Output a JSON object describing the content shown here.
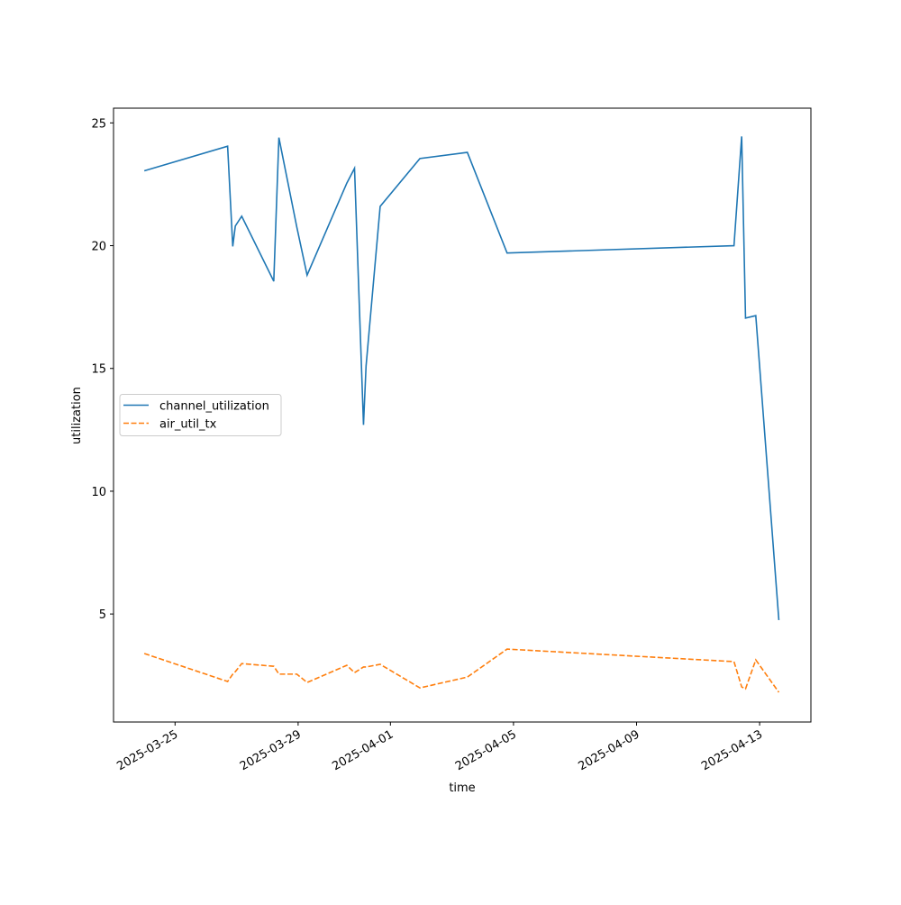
{
  "chart_data": {
    "type": "line",
    "x_label": "time",
    "y_label": "utilization",
    "x": [
      "2025-03-24 00:00",
      "2025-03-26 17:00",
      "2025-03-26 21:00",
      "2025-03-26 23:00",
      "2025-03-27 04:00",
      "2025-03-28 05:00",
      "2025-03-28 09:00",
      "2025-03-28 23:00",
      "2025-03-29 07:00",
      "2025-03-30 14:00",
      "2025-03-30 20:00",
      "2025-03-31 03:00",
      "2025-03-31 05:00",
      "2025-03-31 16:00",
      "2025-04-01 23:00",
      "2025-04-03 12:00",
      "2025-04-04 19:00",
      "2025-04-12 04:00",
      "2025-04-12 10:00",
      "2025-04-12 13:00",
      "2025-04-12 21:00",
      "2025-04-13 15:00"
    ],
    "series": [
      {
        "name": "channel_utilization",
        "color": "#1f77b4",
        "linestyle": "solid",
        "values": [
          23.05,
          24.05,
          19.97,
          20.8,
          21.2,
          18.55,
          24.4,
          20.75,
          18.8,
          22.55,
          23.15,
          12.7,
          15.1,
          21.6,
          23.55,
          23.8,
          19.7,
          20.0,
          24.45,
          17.05,
          17.15,
          4.75
        ]
      },
      {
        "name": "air_util_tx",
        "color": "#ff7f0e",
        "linestyle": "dashed",
        "values": [
          3.39,
          2.25,
          2.55,
          2.65,
          2.98,
          2.87,
          2.55,
          2.55,
          2.21,
          2.91,
          2.61,
          2.84,
          2.84,
          2.95,
          1.99,
          2.43,
          3.57,
          3.06,
          2.03,
          1.95,
          3.13,
          1.81
        ]
      }
    ],
    "xlim": [
      "2025-03-23 00:00",
      "2025-04-14 16:00"
    ],
    "xticks": [
      "2025-03-25",
      "2025-03-29",
      "2025-04-01",
      "2025-04-05",
      "2025-04-09",
      "2025-04-13"
    ],
    "ylim": [
      0.6,
      25.6
    ],
    "yticks": [
      5,
      10,
      15,
      20,
      25
    ],
    "grid": false,
    "legend": "center left"
  }
}
